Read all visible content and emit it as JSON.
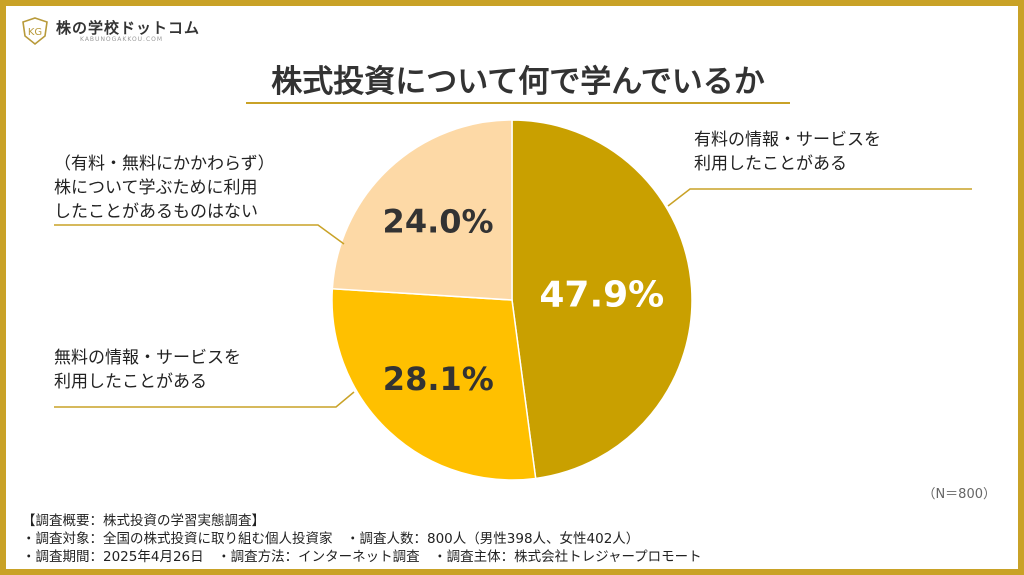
{
  "brand": {
    "name": "株の学校ドットコム",
    "sub": "KABUNOGAKKOU.COM",
    "mark_text": "KG"
  },
  "chart_data": {
    "type": "pie",
    "title": "株式投資について何で学んでいるか",
    "categories": [
      "有料の情報・サービスを\n利用したことがある",
      "無料の情報・サービスを\n利用したことがある",
      "（有料・無料にかかわらず）\n株について学ぶために利用\nしたことがあるものはない"
    ],
    "values": [
      47.9,
      28.1,
      24.0
    ],
    "value_labels": [
      "47.9%",
      "28.1%",
      "24.0%"
    ],
    "colors": [
      "#c9a000",
      "#ffc000",
      "#fdd9a6"
    ],
    "label_colors": [
      "#ffffff",
      "#333333",
      "#333333"
    ],
    "start": "12 o'clock, clockwise",
    "note": "（N＝800）"
  },
  "colors": {
    "accent": "#c9a227",
    "text": "#333333"
  },
  "footer": {
    "heading": "【調査概要：株式投資の学習実態調査】",
    "line1": "・調査対象：全国の株式投資に取り組む個人投資家　・調査人数：800人（男性398人、女性402人）",
    "line2": "・調査期間：2025年4月26日　・調査方法：インターネット調査　・調査主体：株式会社トレジャープロモート"
  }
}
